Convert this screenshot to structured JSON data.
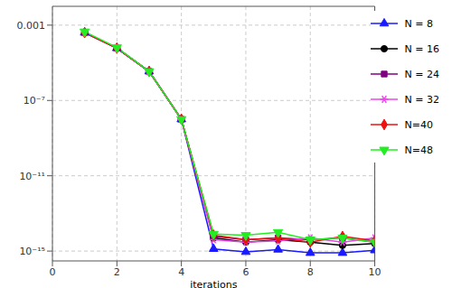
{
  "chart_data": {
    "type": "line",
    "xlabel": "iterations",
    "x": [
      1,
      2,
      3,
      4,
      5,
      6,
      7,
      8,
      9,
      10
    ],
    "xlim": [
      0,
      10
    ],
    "xticks": [
      0,
      2,
      4,
      6,
      8,
      10
    ],
    "ylim": [
      3e-16,
      0.01
    ],
    "yticks": [
      0.001,
      {
        "value": 1e-07,
        "label": "10⁻⁷"
      },
      {
        "value": 1e-11,
        "label": "10⁻¹¹"
      },
      {
        "value": 1e-15,
        "label": "10⁻¹⁵"
      }
    ],
    "log": "y",
    "grid": true,
    "legend": "upper right",
    "series": [
      {
        "name": "N = 8",
        "color": "#1a1aff",
        "marker": "triangle",
        "values": [
          0.0004,
          6e-05,
          3.5e-06,
          1e-08,
          1.3e-15,
          9e-16,
          1.2e-15,
          8e-16,
          8e-16,
          1.1e-15
        ]
      },
      {
        "name": "N = 16",
        "color": "#000000",
        "marker": "circle",
        "values": [
          0.0004,
          6e-05,
          3.5e-06,
          1e-08,
          5e-15,
          3e-15,
          4e-15,
          3e-15,
          2e-15,
          2.5e-15
        ]
      },
      {
        "name": "N = 24",
        "color": "#800080",
        "marker": "square",
        "values": [
          0.0004,
          6e-05,
          3.5e-06,
          1e-08,
          6e-15,
          4e-15,
          5e-15,
          4e-15,
          5e-15,
          3e-15
        ]
      },
      {
        "name": "N = 32",
        "color": "#ee44ee",
        "marker": "asterisk",
        "values": [
          0.0004,
          6e-05,
          3.5e-06,
          1e-08,
          4e-15,
          3e-15,
          3.5e-15,
          5e-15,
          3e-15,
          5e-15
        ]
      },
      {
        "name": "N=40",
        "color": "#ee1111",
        "marker": "diamond",
        "values": [
          0.0004,
          6e-05,
          3.5e-06,
          1e-08,
          7e-15,
          4e-15,
          5e-15,
          3e-15,
          6e-15,
          3.5e-15
        ]
      },
      {
        "name": "N=48",
        "color": "#22ee22",
        "marker": "triangle-down",
        "values": [
          0.00045,
          6.5e-05,
          3.5e-06,
          1e-08,
          8e-15,
          7e-15,
          1e-14,
          4e-15,
          5e-15,
          3e-15
        ]
      }
    ]
  }
}
